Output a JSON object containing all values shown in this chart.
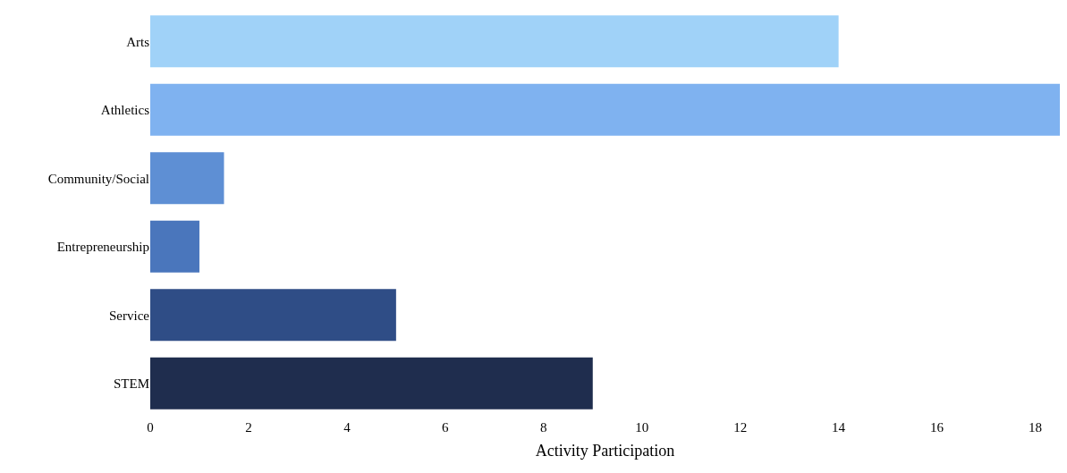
{
  "chart_data": {
    "type": "bar",
    "orientation": "horizontal",
    "xlabel": "Activity Participation",
    "categories": [
      "Arts",
      "Athletics",
      "Community/Social",
      "Entrepreneurship",
      "Service",
      "STEM"
    ],
    "values": [
      14,
      18.5,
      1.5,
      1,
      5,
      9
    ],
    "colors": [
      "#a0d2f8",
      "#7fb2f0",
      "#5e8fd4",
      "#4a76bc",
      "#2f4d86",
      "#1f2d4e"
    ],
    "xlim": [
      0,
      18.5
    ],
    "xticks": [
      0,
      2,
      4,
      6,
      8,
      10,
      12,
      14,
      16,
      18
    ]
  }
}
